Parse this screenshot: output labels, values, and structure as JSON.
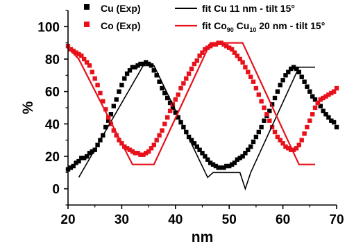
{
  "chart_data": {
    "type": "scatter",
    "xlabel": "nm",
    "ylabel": "%",
    "xlim": [
      20,
      70
    ],
    "ylim": [
      -10,
      110
    ],
    "xticks": [
      20,
      30,
      40,
      50,
      60,
      70
    ],
    "yticks": [
      0,
      20,
      40,
      60,
      80,
      100
    ],
    "grid": false,
    "legend_position": "top",
    "series": [
      {
        "name": "Cu (Exp)",
        "kind": "markers",
        "color": "#000000",
        "x": [
          20.0,
          20.5,
          21.0,
          21.5,
          22.0,
          22.5,
          23.0,
          23.5,
          24.0,
          24.5,
          25.0,
          25.5,
          26.0,
          26.5,
          27.0,
          27.5,
          28.0,
          28.5,
          29.0,
          29.5,
          30.0,
          30.5,
          31.0,
          31.5,
          32.0,
          32.5,
          33.0,
          33.5,
          34.0,
          34.5,
          35.0,
          35.5,
          36.0,
          36.5,
          37.0,
          37.5,
          38.0,
          38.5,
          39.0,
          39.5,
          40.0,
          40.5,
          41.0,
          41.5,
          42.0,
          42.5,
          43.0,
          43.5,
          44.0,
          44.5,
          45.0,
          45.5,
          46.0,
          46.5,
          47.0,
          47.5,
          48.0,
          48.5,
          49.0,
          49.5,
          50.0,
          50.5,
          51.0,
          51.5,
          52.0,
          52.5,
          53.0,
          53.5,
          54.0,
          54.5,
          55.0,
          55.5,
          56.0,
          56.5,
          57.0,
          57.5,
          58.0,
          58.5,
          59.0,
          59.5,
          60.0,
          60.5,
          61.0,
          61.5,
          62.0,
          62.5,
          63.0,
          63.5,
          64.0,
          64.5,
          65.0,
          65.5,
          66.0,
          66.5,
          67.0,
          67.5,
          68.0,
          68.5,
          69.0,
          69.5,
          70.0
        ],
        "y": [
          12,
          13,
          14,
          16,
          17,
          19,
          19,
          20,
          22,
          23,
          24,
          27,
          30,
          33,
          38,
          42,
          46,
          51,
          55,
          60,
          64,
          68,
          71,
          73,
          75,
          75,
          76,
          77,
          77,
          78,
          77,
          76,
          73,
          70,
          66,
          62,
          59,
          56,
          53,
          50,
          47,
          44,
          41,
          38,
          35,
          32,
          30,
          28,
          26,
          24,
          22,
          20,
          18,
          16,
          15,
          14,
          13,
          13,
          13,
          14,
          14,
          15,
          16,
          18,
          19,
          20,
          22,
          24,
          26,
          29,
          32,
          35,
          38,
          42,
          45,
          48,
          52,
          56,
          60,
          64,
          67,
          70,
          72,
          74,
          75,
          74,
          72,
          69,
          66,
          63,
          60,
          57,
          55,
          53,
          51,
          48,
          46,
          44,
          42,
          41,
          38
        ]
      },
      {
        "name": "Co (Exp)",
        "kind": "markers",
        "color": "#e8101a",
        "x": [
          20.0,
          20.5,
          21.0,
          21.5,
          22.0,
          22.5,
          23.0,
          23.5,
          24.0,
          24.5,
          25.0,
          25.5,
          26.0,
          26.5,
          27.0,
          27.5,
          28.0,
          28.5,
          29.0,
          29.5,
          30.0,
          30.5,
          31.0,
          31.5,
          32.0,
          32.5,
          33.0,
          33.5,
          34.0,
          34.5,
          35.0,
          35.5,
          36.0,
          36.5,
          37.0,
          37.5,
          38.0,
          38.5,
          39.0,
          39.5,
          40.0,
          40.5,
          41.0,
          41.5,
          42.0,
          42.5,
          43.0,
          43.5,
          44.0,
          44.5,
          45.0,
          45.5,
          46.0,
          46.5,
          47.0,
          47.5,
          48.0,
          48.5,
          49.0,
          49.5,
          50.0,
          50.5,
          51.0,
          51.5,
          52.0,
          52.5,
          53.0,
          53.5,
          54.0,
          54.5,
          55.0,
          55.5,
          56.0,
          56.5,
          57.0,
          57.5,
          58.0,
          58.5,
          59.0,
          59.5,
          60.0,
          60.5,
          61.0,
          61.5,
          62.0,
          62.5,
          63.0,
          63.5,
          64.0,
          64.5,
          65.0,
          65.5,
          66.0,
          66.5,
          67.0,
          67.5,
          68.0,
          68.5,
          69.0,
          69.5,
          70.0
        ],
        "y": [
          88,
          86,
          85,
          84,
          83,
          82,
          80,
          78,
          76,
          72,
          68,
          64,
          59,
          54,
          49,
          44,
          40,
          36,
          33,
          30,
          28,
          26,
          25,
          24,
          23,
          22,
          22,
          21,
          21,
          22,
          23,
          25,
          27,
          30,
          33,
          36,
          40,
          44,
          48,
          52,
          55,
          58,
          62,
          65,
          68,
          71,
          74,
          77,
          79,
          82,
          84,
          86,
          87,
          88,
          89,
          89,
          90,
          90,
          89,
          88,
          87,
          86,
          84,
          82,
          80,
          78,
          75,
          72,
          69,
          66,
          62,
          58,
          54,
          50,
          46,
          42,
          38,
          35,
          32,
          30,
          28,
          26,
          25,
          24,
          24,
          25,
          27,
          30,
          34,
          38,
          42,
          46,
          50,
          53,
          55,
          56,
          57,
          58,
          59,
          60,
          62
        ]
      },
      {
        "name": "fit Cu 11 nm - tilt 15°",
        "kind": "line",
        "color": "#000000",
        "x": [
          22,
          34,
          36,
          46,
          47,
          52,
          53,
          54,
          63,
          66
        ],
        "y": [
          7,
          76,
          76,
          7,
          10,
          10,
          0,
          10,
          75,
          75
        ]
      },
      {
        "name": "fit Co",
        "kind": "line",
        "color": "#e8101a",
        "x": [
          20,
          22,
          32,
          36,
          46.5,
          52.5,
          63,
          66
        ],
        "y": [
          87,
          80,
          15,
          15,
          90,
          90,
          15,
          15
        ]
      }
    ]
  },
  "legend": {
    "cu_exp": "Cu (Exp)",
    "co_exp": "Co (Exp)",
    "fit_cu": "fit Cu 11 nm - tilt 15°",
    "fit_co_prefix": "fit Co",
    "fit_co_sub1": "90",
    "fit_co_mid": " Cu",
    "fit_co_sub2": "10",
    "fit_co_suffix": " 20 nm - tilt 15°"
  }
}
